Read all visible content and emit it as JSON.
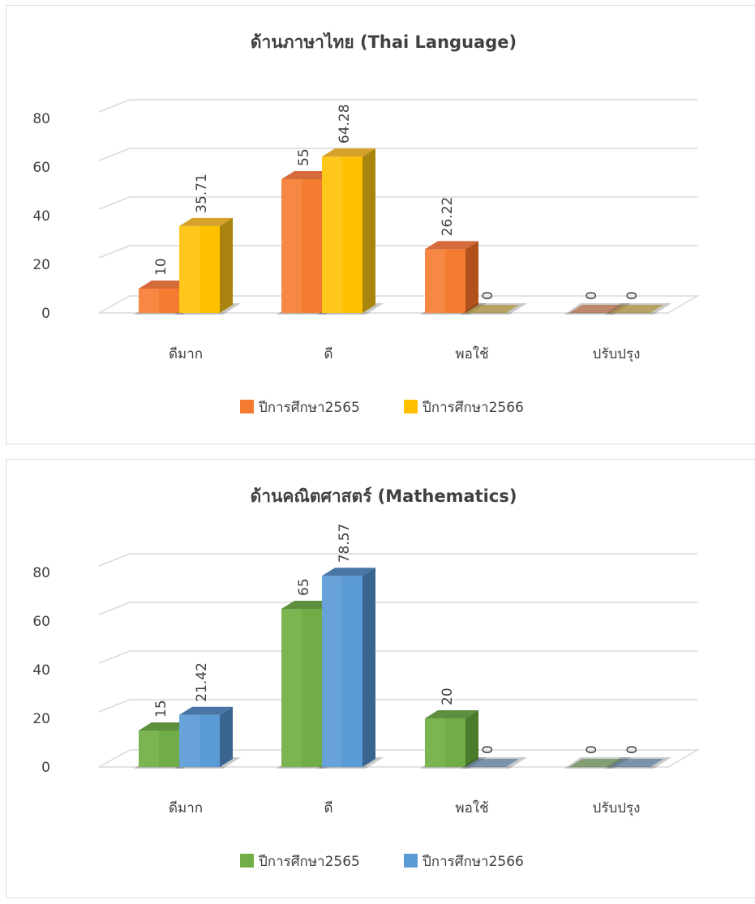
{
  "chart_data": [
    {
      "type": "bar",
      "title": "ด้านภาษาไทย (Thai Language)",
      "categories": [
        "ดีมาก",
        "ดี",
        "พอใช้",
        "ปรับปรุง"
      ],
      "ylim": [
        0,
        80
      ],
      "yticks": [
        "0",
        "20",
        "40",
        "60",
        "80"
      ],
      "grid": true,
      "legend_position": "bottom",
      "series": [
        {
          "name": "ปีการศึกษา2565",
          "values": [
            10,
            55,
            26.22,
            0
          ],
          "labels": [
            "10",
            "55",
            "26.22",
            "0"
          ],
          "color": "#f47c30",
          "color_top": "#d56a3a",
          "color_side": "#b0511b",
          "color_light": "#f9a06a"
        },
        {
          "name": "ปีการศึกษา2566",
          "values": [
            35.71,
            64.28,
            0,
            0
          ],
          "labels": [
            "35.71",
            "64.28",
            "0",
            "0"
          ],
          "color": "#ffc000",
          "color_top": "#d6a22c",
          "color_side": "#a9840e",
          "color_light": "#ffd44d"
        }
      ]
    },
    {
      "type": "bar",
      "title": "ด้านคณิตศาสตร์ (Mathematics)",
      "categories": [
        "ดีมาก",
        "ดี",
        "พอใช้",
        "ปรับปรุง"
      ],
      "ylim": [
        0,
        80
      ],
      "yticks": [
        "0",
        "20",
        "40",
        "60",
        "80"
      ],
      "grid": true,
      "legend_position": "bottom",
      "series": [
        {
          "name": "ปีการศึกษา2565",
          "values": [
            15,
            65,
            20,
            0
          ],
          "labels": [
            "15",
            "65",
            "20",
            "0"
          ],
          "color": "#70ad47",
          "color_top": "#5e8f3e",
          "color_side": "#4a7a2b",
          "color_light": "#8cc665"
        },
        {
          "name": "ปีการศึกษา2566",
          "values": [
            21.42,
            78.57,
            0,
            0
          ],
          "labels": [
            "21.42",
            "78.57",
            "0",
            "0"
          ],
          "color": "#5b9bd5",
          "color_top": "#4a76a5",
          "color_side": "#3a6591",
          "color_light": "#7fb2e3"
        }
      ]
    }
  ]
}
